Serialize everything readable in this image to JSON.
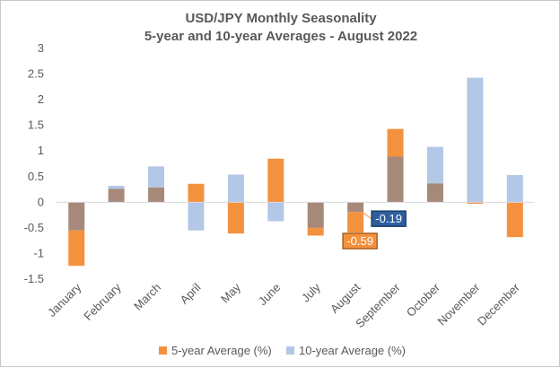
{
  "chart_data": {
    "type": "bar",
    "title": "USD/JPY Monthly Seasonality",
    "subtitle": "5-year and 10-year Averages - August 2022",
    "categories": [
      "January",
      "February",
      "March",
      "April",
      "May",
      "June",
      "July",
      "August",
      "September",
      "October",
      "November",
      "December"
    ],
    "series": [
      {
        "name": "5-year Average (%)",
        "color": "#f4913f",
        "values": [
          -1.24,
          0.26,
          0.29,
          0.36,
          -0.61,
          0.85,
          -0.65,
          -0.59,
          1.43,
          0.37,
          -0.03,
          -0.68
        ]
      },
      {
        "name": "10-year Average (%)",
        "color": "#b3c7e6",
        "values": [
          -0.55,
          0.32,
          0.7,
          -0.55,
          0.54,
          -0.37,
          -0.5,
          -0.19,
          0.89,
          1.08,
          2.43,
          0.53
        ]
      }
    ],
    "overlap_color": "#a6897a",
    "ylim": [
      -1.5,
      3
    ],
    "yticks": [
      "3",
      "2.5",
      "2",
      "1.5",
      "1",
      "0.5",
      "0",
      "-0.5",
      "-1",
      "-1.5"
    ],
    "ytick_values": [
      3,
      2.5,
      2,
      1.5,
      1,
      0.5,
      0,
      -0.5,
      -1,
      -1.5
    ],
    "annotations": [
      {
        "text": "-0.19",
        "category": "August",
        "value": -0.19,
        "fill": "#2e5e9e",
        "border": "#1f3f70"
      },
      {
        "text": "-0.59",
        "category": "August",
        "value": -0.59,
        "fill": "#f4913f",
        "border": "#a85f1e"
      }
    ],
    "legend": {
      "position": "bottom",
      "items": [
        "5-year Average (%)",
        "10-year Average (%)"
      ]
    }
  }
}
